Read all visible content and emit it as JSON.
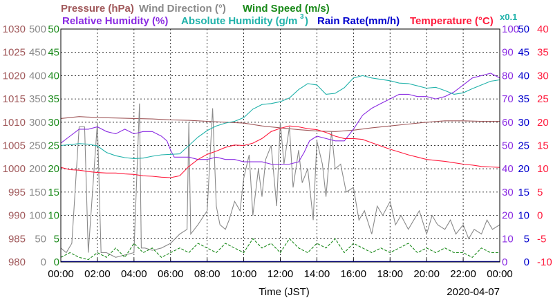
{
  "chart_data": {
    "type": "line",
    "legend": [
      {
        "text": "Pressure (hPa)",
        "color": "#a0585a"
      },
      {
        "text": "Wind Direction (°)",
        "color": "#8a8a8a"
      },
      {
        "text": "Wind Speed (m/s)",
        "color": "#1a8a1a"
      },
      {
        "text": "Relative Humidity (%)",
        "color": "#8a2be2"
      },
      {
        "text": "Absolute Humidity (g/m",
        "color": "#20b2aa"
      },
      {
        "text": "3",
        "color": "#20b2aa"
      },
      {
        "text": ")",
        "color": "#20b2aa"
      },
      {
        "text": "Rain Rate(mm/h)",
        "color": "#0000cd"
      },
      {
        "text": "Temperature (°C)",
        "color": "#ff1a3c"
      },
      {
        "text": "x0.1",
        "color": "#20b2aa"
      }
    ],
    "xlabel": "Time (JST)",
    "date": "2020-04-07",
    "x_ticks": [
      "00:00",
      "02:00",
      "04:00",
      "06:00",
      "08:00",
      "10:00",
      "12:00",
      "14:00",
      "16:00",
      "18:00",
      "20:00",
      "22:00",
      "00:00"
    ],
    "xlim": [
      0,
      24
    ],
    "axes": [
      {
        "name": "Pressure",
        "color": "#a0585a",
        "ylim": [
          980,
          1030
        ],
        "ticks": [
          "980",
          "985",
          "990",
          "995",
          "1000",
          "1005",
          "1010",
          "1015",
          "1020",
          "1025",
          "1030"
        ]
      },
      {
        "name": "Wind Direction",
        "color": "#8a8a8a",
        "ylim": [
          0,
          500
        ],
        "ticks": [
          "0",
          "50",
          "100",
          "150",
          "200",
          "250",
          "300",
          "350",
          "400",
          "450",
          "500"
        ]
      },
      {
        "name": "Wind Speed",
        "color": "#1a8a1a",
        "ylim": [
          0,
          50
        ],
        "ticks": [
          "0",
          "5",
          "10",
          "15",
          "20",
          "25",
          "30",
          "35",
          "40",
          "45",
          "50"
        ]
      },
      {
        "name": "Relative Humidity",
        "color": "#8a2be2",
        "ylim": [
          0,
          100
        ],
        "ticks": [
          "0",
          "10",
          "20",
          "30",
          "40",
          "50",
          "60",
          "70",
          "80",
          "90",
          "100"
        ]
      },
      {
        "name": "Rain Rate",
        "color": "#0000cd",
        "ylim": [
          0,
          50
        ],
        "ticks": [
          "0",
          "5",
          "10",
          "15",
          "20",
          "25",
          "30",
          "35",
          "40",
          "45",
          "50"
        ]
      },
      {
        "name": "Temperature",
        "color": "#ff1a3c",
        "ylim": [
          -10,
          40
        ],
        "ticks": [
          "-10",
          "-5",
          "0",
          "5",
          "10",
          "15",
          "20",
          "25",
          "30",
          "35",
          "40"
        ]
      }
    ],
    "grid": true,
    "series": [
      {
        "name": "Pressure",
        "axis": 0,
        "color": "#a0585a",
        "x": [
          0,
          1,
          2,
          3,
          4,
          5,
          6,
          7,
          8,
          9,
          10,
          11,
          12,
          13,
          14,
          15,
          16,
          17,
          18,
          19,
          20,
          21,
          22,
          23,
          24
        ],
        "y": [
          1010.8,
          1011.2,
          1011.0,
          1010.9,
          1010.8,
          1010.7,
          1010.5,
          1010.4,
          1010.2,
          1010.0,
          1009.8,
          1009.2,
          1008.8,
          1008.4,
          1008.1,
          1008.0,
          1008.3,
          1008.8,
          1009.2,
          1009.6,
          1010.0,
          1010.3,
          1010.3,
          1010.2,
          1010.2
        ]
      },
      {
        "name": "Wind Direction",
        "axis": 1,
        "color": "#8a8a8a",
        "x": [
          0,
          0.3,
          0.6,
          1.0,
          1.3,
          1.5,
          2.0,
          2.2,
          2.5,
          3.0,
          3.5,
          4.0,
          4.3,
          4.4,
          4.6,
          5.0,
          5.5,
          6.0,
          6.5,
          6.9,
          7.0,
          7.1,
          7.5,
          8.0,
          8.3,
          8.5,
          8.7,
          9.0,
          9.2,
          9.5,
          9.8,
          10.0,
          10.3,
          10.5,
          10.8,
          11.0,
          11.2,
          11.5,
          11.8,
          12.0,
          12.2,
          12.5,
          12.7,
          13.0,
          13.2,
          13.5,
          13.8,
          14.0,
          14.3,
          14.5,
          14.8,
          15.0,
          15.3,
          15.6,
          16.0,
          16.3,
          16.6,
          17.0,
          17.3,
          17.6,
          18.0,
          18.3,
          18.6,
          19.0,
          19.3,
          19.6,
          20.0,
          20.3,
          20.6,
          21.0,
          21.3,
          21.6,
          22.0,
          22.3,
          22.6,
          23.0,
          23.3,
          23.6,
          24.0
        ],
        "y": [
          30,
          20,
          40,
          290,
          290,
          20,
          300,
          20,
          20,
          10,
          15,
          20,
          340,
          30,
          30,
          25,
          30,
          40,
          60,
          70,
          300,
          60,
          80,
          110,
          330,
          120,
          80,
          70,
          90,
          130,
          110,
          180,
          230,
          100,
          200,
          140,
          220,
          250,
          120,
          300,
          210,
          290,
          160,
          240,
          170,
          200,
          90,
          260,
          210,
          140,
          280,
          200,
          210,
          150,
          160,
          90,
          110,
          60,
          120,
          100,
          130,
          80,
          100,
          70,
          90,
          110,
          60,
          100,
          80,
          70,
          90,
          60,
          80,
          50,
          70,
          60,
          90,
          70,
          80
        ]
      },
      {
        "name": "Wind Speed",
        "axis": 2,
        "color": "#1a8a1a",
        "dashed": true,
        "x": [
          0,
          0.5,
          1,
          1.5,
          2,
          2.5,
          3,
          3.5,
          4,
          4.5,
          5,
          5.5,
          6,
          6.5,
          7,
          7.5,
          8,
          8.5,
          9,
          9.5,
          10,
          10.5,
          11,
          11.5,
          12,
          12.5,
          13,
          13.5,
          14,
          14.5,
          15,
          15.5,
          16,
          16.5,
          17,
          17.5,
          18,
          18.5,
          19,
          19.5,
          20,
          20.5,
          21,
          21.5,
          22,
          22.5,
          23,
          23.5,
          24
        ],
        "y": [
          1,
          2,
          1,
          0.5,
          2,
          1,
          3,
          1,
          4,
          2,
          3,
          1,
          2,
          3,
          2,
          4,
          3,
          2,
          4,
          3,
          2,
          5,
          3,
          4,
          2,
          5,
          3,
          2,
          4,
          3,
          5,
          2,
          4,
          3,
          2,
          3,
          2,
          3,
          4,
          2,
          3,
          2,
          3,
          2,
          2,
          1,
          3,
          2,
          2
        ]
      },
      {
        "name": "Relative Humidity",
        "axis": 3,
        "color": "#8a2be2",
        "x": [
          0,
          0.5,
          1,
          1.5,
          2,
          2.5,
          3,
          3.5,
          4,
          4.5,
          5,
          5.5,
          5.8,
          6.0,
          6.2,
          6.5,
          7,
          7.5,
          8,
          8.5,
          9,
          9.5,
          10,
          10.5,
          11,
          11.5,
          12,
          12.5,
          13,
          13.3,
          13.6,
          14,
          14.5,
          15,
          15.5,
          16,
          16.5,
          17,
          17.5,
          18,
          18.5,
          19,
          19.5,
          20,
          20.5,
          21,
          21.5,
          22,
          22.5,
          23,
          23.5,
          24
        ],
        "y": [
          51,
          54,
          57,
          57,
          58,
          56,
          55,
          57,
          55,
          56,
          56,
          54,
          52,
          48,
          45,
          45,
          45,
          44,
          44,
          45,
          44,
          44,
          43,
          43,
          43,
          42,
          42,
          42,
          43,
          47,
          52,
          54,
          53,
          52,
          52,
          57,
          63,
          66,
          68,
          70,
          72,
          72,
          71,
          71,
          70,
          71,
          73,
          76,
          79,
          80,
          81,
          79
        ]
      },
      {
        "name": "Absolute Humidity",
        "axis": 0,
        "color": "#20b2aa",
        "x": [
          0,
          0.5,
          1,
          1.5,
          2,
          2.5,
          3,
          3.5,
          4,
          4.5,
          5,
          5.5,
          6,
          6.5,
          7,
          7.5,
          8,
          8.5,
          9,
          9.5,
          10,
          10.5,
          11,
          11.5,
          12,
          12.5,
          13,
          13.5,
          14,
          14.5,
          15,
          15.5,
          16,
          16.5,
          17,
          17.5,
          18,
          18.5,
          19,
          19.5,
          20,
          20.5,
          21,
          21.5,
          22,
          22.5,
          23,
          23.5,
          24
        ],
        "y": [
          1005.0,
          1005.2,
          1005.4,
          1005.3,
          1004.9,
          1003.5,
          1002.8,
          1002.4,
          1002.2,
          1002.3,
          1002.7,
          1003.0,
          1003.1,
          1003.2,
          1005.0,
          1006.8,
          1008.2,
          1009.2,
          1009.8,
          1010.2,
          1011.0,
          1012.8,
          1013.8,
          1014.0,
          1014.4,
          1015.2,
          1017.0,
          1018.3,
          1018.0,
          1016.0,
          1016.2,
          1017.4,
          1019.5,
          1020.0,
          1019.5,
          1019.2,
          1018.9,
          1018.4,
          1018.3,
          1017.8,
          1017.3,
          1017.5,
          1016.8,
          1016.0,
          1016.3,
          1017.2,
          1018.0,
          1018.8,
          1019.1
        ]
      },
      {
        "name": "Rain Rate",
        "axis": 4,
        "color": "#0000cd",
        "x": [
          0,
          24
        ],
        "y": [
          0.1,
          0.1
        ]
      },
      {
        "name": "Temperature",
        "axis": 5,
        "color": "#ff1a3c",
        "x": [
          0,
          0.5,
          1,
          1.5,
          2,
          2.5,
          3,
          3.5,
          4,
          4.5,
          5,
          5.5,
          6,
          6.5,
          7,
          7.5,
          8,
          8.5,
          9,
          9.5,
          10,
          10.5,
          11,
          11.5,
          12,
          12.5,
          13,
          13.5,
          14,
          14.5,
          15,
          15.5,
          16,
          16.5,
          17,
          17.5,
          18,
          18.5,
          19,
          19.5,
          20,
          20.5,
          21,
          21.5,
          22,
          22.5,
          23,
          23.5,
          24
        ],
        "y": [
          10.3,
          9.8,
          9.7,
          9.4,
          9.2,
          9.1,
          9.1,
          8.9,
          8.8,
          8.5,
          8.4,
          8.2,
          8.1,
          8.5,
          10.5,
          12.0,
          13.1,
          13.8,
          14.6,
          15.1,
          15.0,
          15.5,
          16.5,
          18.0,
          18.7,
          19.2,
          19.0,
          18.6,
          18.4,
          17.8,
          17.0,
          16.5,
          16.5,
          16.3,
          15.6,
          14.9,
          14.2,
          13.6,
          13.0,
          12.5,
          12.0,
          11.8,
          11.6,
          11.3,
          11.0,
          10.8,
          10.5,
          10.4,
          10.3
        ]
      }
    ]
  }
}
